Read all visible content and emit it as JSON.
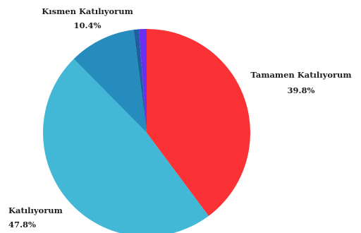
{
  "chart_data": {
    "type": "pie",
    "title": "",
    "start_angle_deg": 0,
    "direction": "clockwise",
    "slices": [
      {
        "label": "Tamamen Katılıyorum",
        "value_text": "39.8%",
        "value": 39.8,
        "color": "#fb3235"
      },
      {
        "label": "Katılıyorum",
        "value_text": "47.8%",
        "value": 47.8,
        "color": "#43b8d6"
      },
      {
        "label": "Kısmen Katılıyorum",
        "value_text": "10.4%",
        "value": 10.4,
        "color": "#268bbd"
      },
      {
        "label": "",
        "value_text": "",
        "value": 0.8,
        "color": "#1f5fa0"
      },
      {
        "label": "",
        "value_text": "",
        "value": 1.2,
        "color": "#6b2ff0"
      }
    ]
  }
}
